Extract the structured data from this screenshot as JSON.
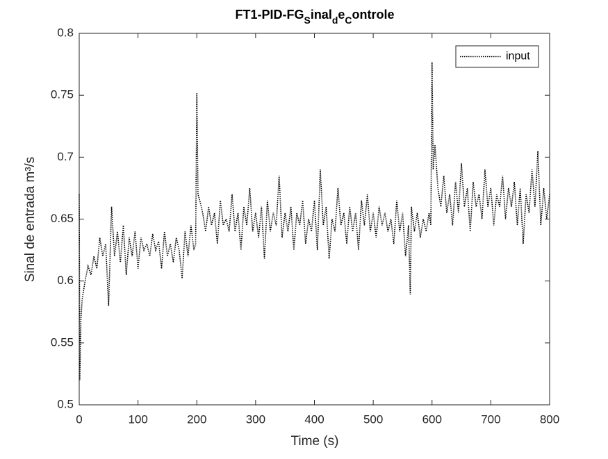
{
  "chart_data": {
    "type": "line",
    "title_parts": [
      {
        "text": "FT1-PID-FG",
        "subscript": false
      },
      {
        "text": "S",
        "subscript": true
      },
      {
        "text": "inal",
        "subscript": false
      },
      {
        "text": "d",
        "subscript": true
      },
      {
        "text": "e",
        "subscript": false
      },
      {
        "text": "C",
        "subscript": true
      },
      {
        "text": "ontrole",
        "subscript": false
      }
    ],
    "x_label": "Time (s)",
    "y_label": "Sinal de entrada m³/s",
    "xlim": [
      0,
      800
    ],
    "xticks": [
      0,
      100,
      200,
      300,
      400,
      500,
      600,
      700,
      800
    ],
    "ylim": [
      0.5,
      0.8
    ],
    "yticks": [
      0.5,
      0.55,
      0.6,
      0.65,
      0.7,
      0.75,
      0.8
    ],
    "grid": false,
    "legend_position": "top-right",
    "x": [
      0,
      1,
      3,
      5,
      10,
      15,
      20,
      25,
      30,
      35,
      40,
      45,
      50,
      55,
      60,
      65,
      70,
      75,
      80,
      85,
      90,
      95,
      100,
      105,
      110,
      115,
      120,
      125,
      130,
      135,
      140,
      145,
      150,
      155,
      160,
      165,
      170,
      175,
      180,
      185,
      190,
      195,
      198,
      200,
      202,
      205,
      210,
      215,
      220,
      225,
      230,
      235,
      240,
      245,
      250,
      255,
      260,
      265,
      270,
      275,
      280,
      285,
      290,
      295,
      300,
      305,
      310,
      315,
      320,
      325,
      330,
      335,
      340,
      345,
      350,
      355,
      360,
      365,
      370,
      375,
      380,
      385,
      390,
      395,
      400,
      405,
      410,
      415,
      420,
      425,
      430,
      435,
      440,
      445,
      450,
      455,
      460,
      465,
      470,
      475,
      480,
      485,
      490,
      495,
      500,
      505,
      510,
      515,
      520,
      525,
      530,
      535,
      540,
      545,
      550,
      555,
      560,
      563,
      565,
      570,
      575,
      580,
      585,
      590,
      595,
      598,
      600,
      602,
      605,
      610,
      615,
      620,
      625,
      630,
      635,
      640,
      645,
      650,
      655,
      660,
      665,
      670,
      675,
      680,
      685,
      690,
      695,
      700,
      705,
      710,
      715,
      720,
      725,
      730,
      735,
      740,
      745,
      750,
      755,
      760,
      765,
      770,
      775,
      780,
      785,
      790,
      795,
      800
    ],
    "series": [
      {
        "name": "input",
        "color": "#000000",
        "dash": "dotted",
        "values": [
          0.67,
          0.52,
          0.57,
          0.585,
          0.6,
          0.612,
          0.605,
          0.62,
          0.61,
          0.635,
          0.62,
          0.63,
          0.58,
          0.66,
          0.62,
          0.64,
          0.615,
          0.645,
          0.605,
          0.635,
          0.62,
          0.64,
          0.61,
          0.635,
          0.625,
          0.63,
          0.62,
          0.638,
          0.625,
          0.632,
          0.61,
          0.64,
          0.62,
          0.63,
          0.615,
          0.635,
          0.625,
          0.602,
          0.64,
          0.62,
          0.645,
          0.625,
          0.63,
          0.752,
          0.67,
          0.665,
          0.655,
          0.64,
          0.66,
          0.645,
          0.655,
          0.63,
          0.665,
          0.645,
          0.65,
          0.64,
          0.67,
          0.64,
          0.655,
          0.625,
          0.66,
          0.645,
          0.675,
          0.64,
          0.655,
          0.635,
          0.66,
          0.618,
          0.665,
          0.64,
          0.655,
          0.645,
          0.685,
          0.635,
          0.655,
          0.64,
          0.66,
          0.625,
          0.655,
          0.645,
          0.665,
          0.63,
          0.65,
          0.64,
          0.665,
          0.625,
          0.69,
          0.645,
          0.66,
          0.618,
          0.65,
          0.64,
          0.675,
          0.645,
          0.655,
          0.63,
          0.66,
          0.64,
          0.655,
          0.625,
          0.665,
          0.645,
          0.67,
          0.64,
          0.655,
          0.635,
          0.66,
          0.645,
          0.655,
          0.64,
          0.65,
          0.63,
          0.665,
          0.64,
          0.655,
          0.62,
          0.645,
          0.589,
          0.66,
          0.64,
          0.655,
          0.635,
          0.65,
          0.64,
          0.655,
          0.645,
          0.777,
          0.69,
          0.71,
          0.675,
          0.66,
          0.685,
          0.655,
          0.67,
          0.645,
          0.68,
          0.655,
          0.695,
          0.66,
          0.675,
          0.64,
          0.68,
          0.66,
          0.67,
          0.65,
          0.69,
          0.66,
          0.675,
          0.645,
          0.67,
          0.66,
          0.685,
          0.65,
          0.675,
          0.66,
          0.68,
          0.645,
          0.675,
          0.63,
          0.67,
          0.655,
          0.69,
          0.66,
          0.705,
          0.645,
          0.675,
          0.65,
          0.67
        ]
      }
    ]
  }
}
